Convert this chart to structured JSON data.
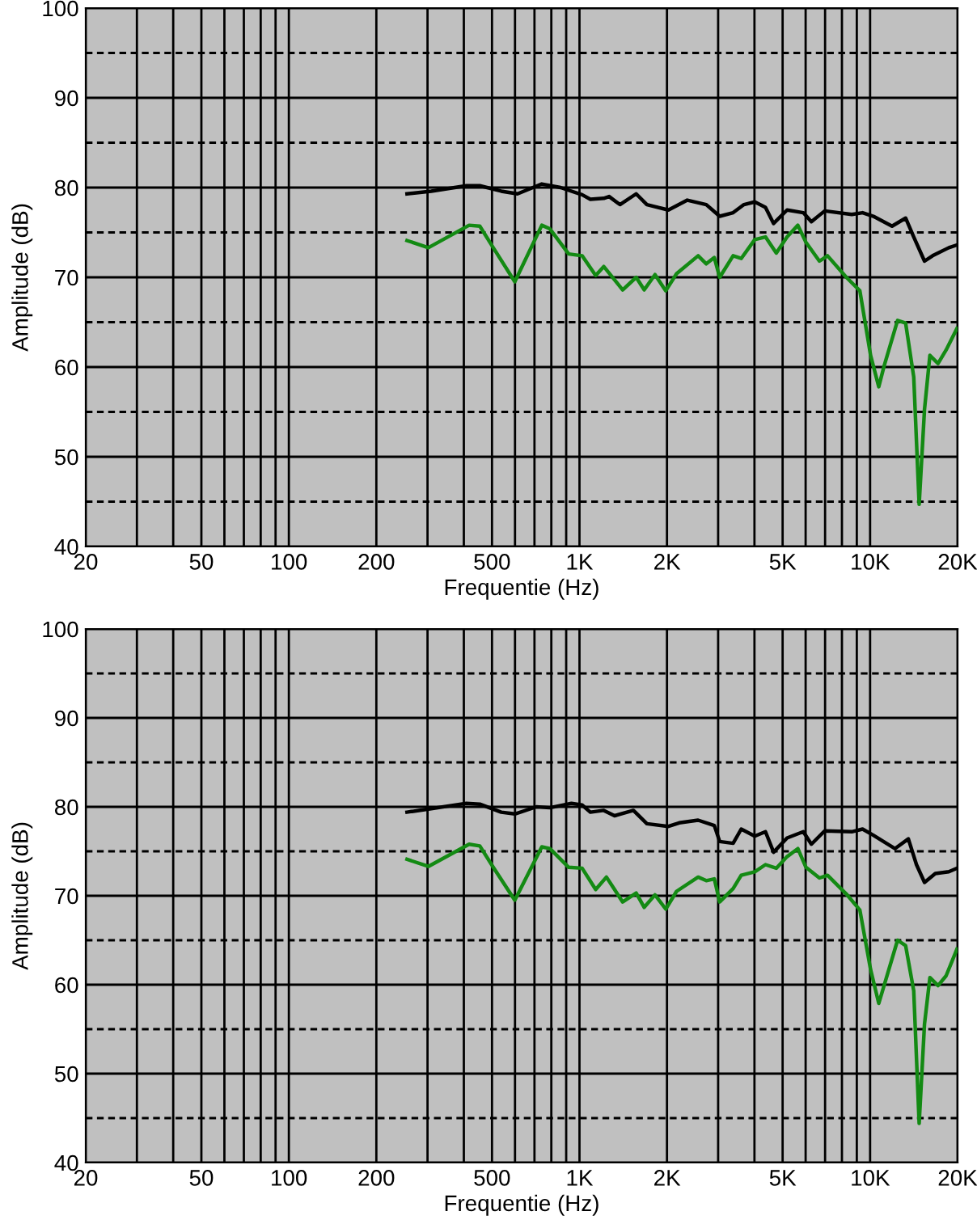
{
  "chart_data": [
    {
      "type": "line",
      "xlabel": "Frequentie (Hz)",
      "ylabel": "Amplitude (dB)",
      "log": "x",
      "grid": true,
      "marker": "none",
      "line_style": "solid",
      "xlim": [
        20,
        20000
      ],
      "ylim": [
        40,
        100
      ],
      "xticks": [
        20,
        {
          "value": 30,
          "label": null
        },
        {
          "value": 40,
          "label": null
        },
        50,
        {
          "value": 60,
          "label": null
        },
        {
          "value": 70,
          "label": null
        },
        {
          "value": 80,
          "label": null
        },
        {
          "value": 90,
          "label": null
        },
        100,
        200,
        {
          "value": 300,
          "label": null
        },
        {
          "value": 400,
          "label": null
        },
        500,
        {
          "value": 600,
          "label": null
        },
        {
          "value": 700,
          "label": null
        },
        {
          "value": 800,
          "label": null
        },
        {
          "value": 900,
          "label": null
        },
        {
          "value": 1000,
          "label": "1K"
        },
        {
          "value": 2000,
          "label": "2K"
        },
        {
          "value": 3000,
          "label": null
        },
        {
          "value": 4000,
          "label": null
        },
        {
          "value": 5000,
          "label": "5K"
        },
        {
          "value": 6000,
          "label": null
        },
        {
          "value": 7000,
          "label": null
        },
        {
          "value": 8000,
          "label": null
        },
        {
          "value": 9000,
          "label": null
        },
        {
          "value": 10000,
          "label": "10K"
        },
        {
          "value": 20000,
          "label": "20K"
        }
      ],
      "yticks": [
        40,
        {
          "value": 45,
          "label": null
        },
        50,
        {
          "value": 55,
          "label": null
        },
        60,
        {
          "value": 65,
          "label": null
        },
        70,
        {
          "value": 75,
          "label": null
        },
        80,
        {
          "value": 85,
          "label": null
        },
        90,
        {
          "value": 95,
          "label": null
        },
        100
      ],
      "series": [
        {
          "color": "#000000",
          "x": [
            255,
            309,
            408,
            454,
            538,
            612,
            742,
            861,
            1021,
            1090,
            1212,
            1265,
            1378,
            1567,
            1706,
            2023,
            2350,
            2731,
            3037,
            3378,
            3680,
            4010,
            4365,
            4655,
            5180,
            5890,
            6280,
            6980,
            8650,
            9420,
            10260,
            11900,
            13250,
            14130,
            15390,
            16410,
            18660,
            19900
          ],
          "values": [
            79.3,
            79.6,
            80.2,
            80.2,
            79.6,
            79.3,
            80.4,
            80.0,
            79.2,
            78.7,
            78.8,
            79.0,
            78.1,
            79.3,
            78.1,
            77.5,
            78.6,
            78.1,
            76.8,
            77.2,
            78.1,
            78.4,
            77.8,
            76.0,
            77.5,
            77.2,
            76.2,
            77.4,
            77.0,
            77.2,
            76.8,
            75.7,
            76.6,
            74.5,
            71.8,
            72.4,
            73.3,
            73.6
          ]
        },
        {
          "color": "#138a13",
          "x": [
            255,
            302,
            417,
            454,
            505,
            599,
            742,
            791,
            918,
            1021,
            1137,
            1212,
            1408,
            1567,
            1670,
            1819,
            1981,
            2158,
            2560,
            2731,
            2910,
            3037,
            3378,
            3602,
            4010,
            4365,
            4756,
            5180,
            5641,
            6016,
            6693,
            7137,
            8284,
            9220,
            10040,
            10710,
            11170,
            12430,
            13250,
            14130,
            14750,
            15390,
            16060,
            17130,
            18260,
            19900
          ],
          "values": [
            74.1,
            73.3,
            75.8,
            75.7,
            73.3,
            69.5,
            75.8,
            75.4,
            72.6,
            72.4,
            70.2,
            71.2,
            68.6,
            70.0,
            68.6,
            70.3,
            68.5,
            70.4,
            72.4,
            71.5,
            72.2,
            70.0,
            72.4,
            72.1,
            74.2,
            74.5,
            72.7,
            74.5,
            75.8,
            73.9,
            71.8,
            72.4,
            70.0,
            68.5,
            61.3,
            57.8,
            60.1,
            65.2,
            64.9,
            58.9,
            44.7,
            55.3,
            61.3,
            60.4,
            61.9,
            64.3
          ]
        }
      ]
    },
    {
      "type": "line",
      "xlabel": "Frequentie (Hz)",
      "ylabel": "Amplitude (dB)",
      "log": "x",
      "grid": true,
      "marker": "none",
      "line_style": "solid",
      "xlim": [
        20,
        20000
      ],
      "ylim": [
        40,
        100
      ],
      "xticks": [
        20,
        {
          "value": 30,
          "label": null
        },
        {
          "value": 40,
          "label": null
        },
        50,
        {
          "value": 60,
          "label": null
        },
        {
          "value": 70,
          "label": null
        },
        {
          "value": 80,
          "label": null
        },
        {
          "value": 90,
          "label": null
        },
        100,
        200,
        {
          "value": 300,
          "label": null
        },
        {
          "value": 400,
          "label": null
        },
        500,
        {
          "value": 600,
          "label": null
        },
        {
          "value": 700,
          "label": null
        },
        {
          "value": 800,
          "label": null
        },
        {
          "value": 900,
          "label": null
        },
        {
          "value": 1000,
          "label": "1K"
        },
        {
          "value": 2000,
          "label": "2K"
        },
        {
          "value": 3000,
          "label": null
        },
        {
          "value": 4000,
          "label": null
        },
        {
          "value": 5000,
          "label": "5K"
        },
        {
          "value": 6000,
          "label": null
        },
        {
          "value": 7000,
          "label": null
        },
        {
          "value": 8000,
          "label": null
        },
        {
          "value": 9000,
          "label": null
        },
        {
          "value": 10000,
          "label": "10K"
        },
        {
          "value": 20000,
          "label": "20K"
        }
      ],
      "yticks": [
        40,
        {
          "value": 45,
          "label": null
        },
        50,
        {
          "value": 55,
          "label": null
        },
        60,
        {
          "value": 65,
          "label": null
        },
        70,
        {
          "value": 75,
          "label": null
        },
        80,
        {
          "value": 85,
          "label": null
        },
        90,
        {
          "value": 95,
          "label": null
        },
        100
      ],
      "series": [
        {
          "color": "#000000",
          "x": [
            255,
            309,
            408,
            454,
            538,
            599,
            711,
            791,
            938,
            1021,
            1090,
            1212,
            1320,
            1533,
            1706,
            2023,
            2204,
            2560,
            2910,
            3037,
            3378,
            3602,
            4010,
            4365,
            4655,
            5180,
            5890,
            6280,
            6980,
            8650,
            9420,
            10260,
            12170,
            13540,
            14440,
            15390,
            16760,
            18660,
            19900
          ],
          "values": [
            79.4,
            79.8,
            80.4,
            80.3,
            79.4,
            79.2,
            80.0,
            79.9,
            80.4,
            80.2,
            79.4,
            79.6,
            79.0,
            79.6,
            78.1,
            77.8,
            78.2,
            78.5,
            77.9,
            76.1,
            75.9,
            77.5,
            76.7,
            77.2,
            74.9,
            76.5,
            77.2,
            75.8,
            77.3,
            77.2,
            77.5,
            76.8,
            75.3,
            76.4,
            73.5,
            71.5,
            72.5,
            72.7,
            73.1
          ]
        },
        {
          "color": "#138a13",
          "x": [
            255,
            302,
            417,
            454,
            505,
            599,
            742,
            791,
            918,
            1021,
            1137,
            1238,
            1408,
            1567,
            1670,
            1819,
            1981,
            2158,
            2560,
            2731,
            2910,
            3037,
            3378,
            3602,
            4010,
            4365,
            4756,
            5180,
            5641,
            6016,
            6693,
            7137,
            8284,
            9220,
            10040,
            10710,
            11170,
            12430,
            13250,
            14130,
            14750,
            15390,
            16060,
            17130,
            18260,
            19900
          ],
          "values": [
            74.1,
            73.3,
            75.8,
            75.6,
            73.2,
            69.5,
            75.5,
            75.3,
            73.2,
            73.1,
            70.7,
            72.1,
            69.3,
            70.3,
            68.7,
            70.1,
            68.5,
            70.5,
            72.1,
            71.7,
            71.9,
            69.3,
            70.8,
            72.3,
            72.7,
            73.5,
            73.1,
            74.4,
            75.3,
            73.2,
            72.0,
            72.3,
            70.2,
            68.4,
            61.7,
            57.9,
            59.9,
            65.0,
            64.4,
            59.3,
            44.4,
            55.6,
            60.8,
            59.9,
            61.0,
            64.0
          ]
        }
      ]
    }
  ]
}
